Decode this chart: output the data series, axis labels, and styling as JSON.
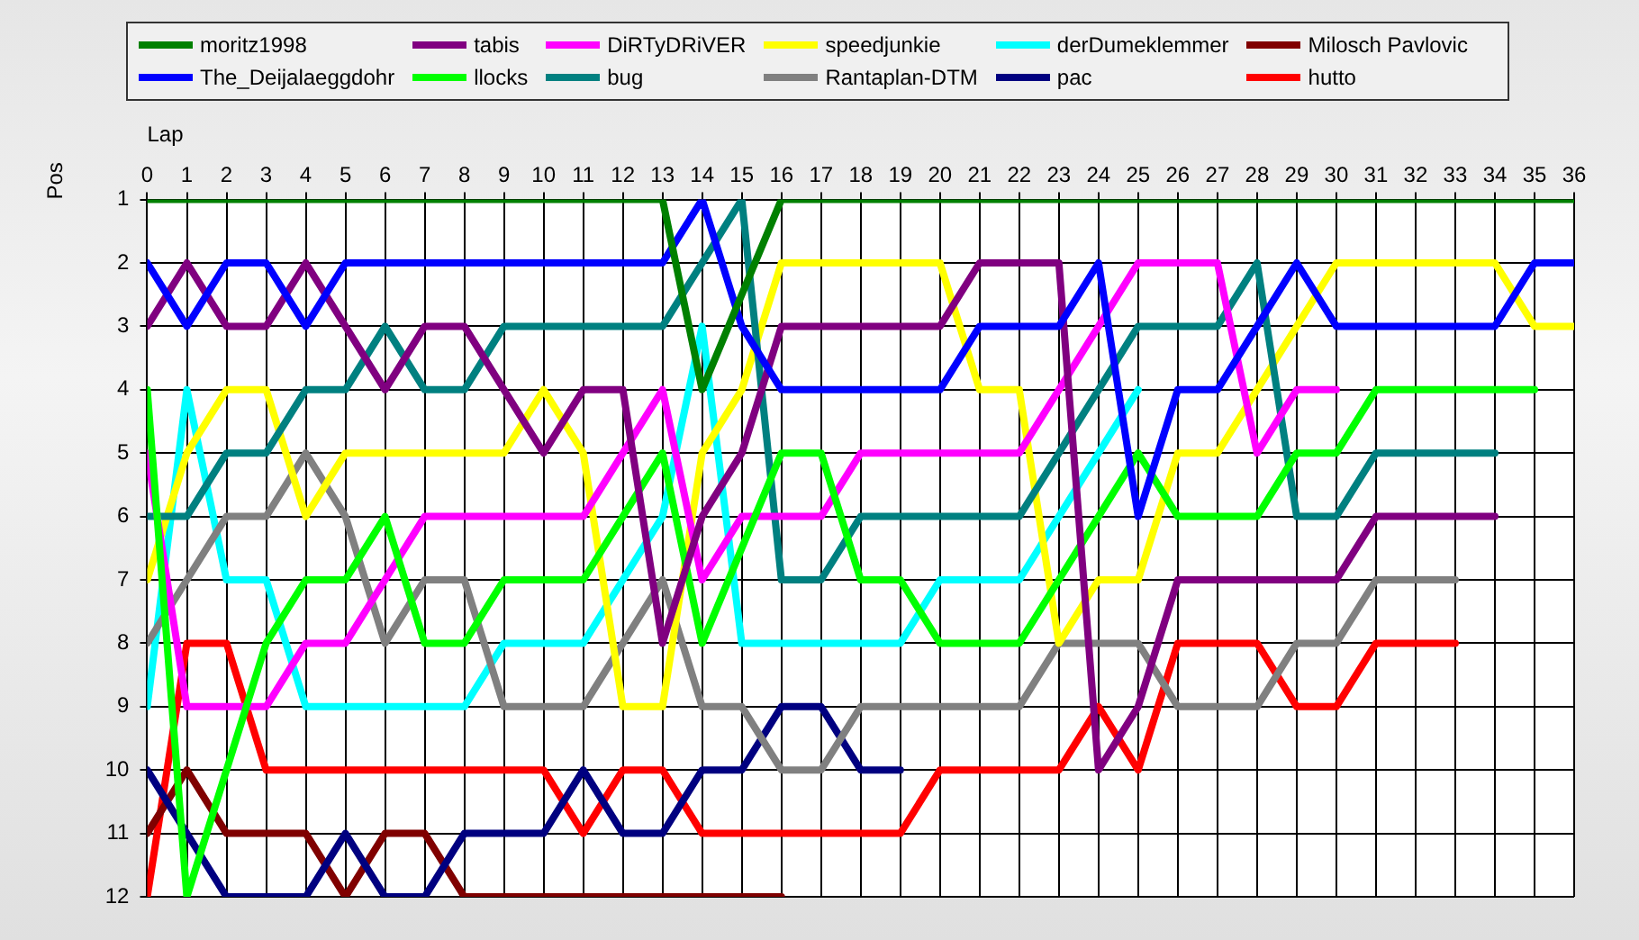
{
  "chart_data": {
    "type": "line",
    "xlabel": "Lap",
    "ylabel": "Pos",
    "x": [
      0,
      1,
      2,
      3,
      4,
      5,
      6,
      7,
      8,
      9,
      10,
      11,
      12,
      13,
      14,
      15,
      16,
      17,
      18,
      19,
      20,
      21,
      22,
      23,
      24,
      25,
      26,
      27,
      28,
      29,
      30,
      31,
      32,
      33,
      34,
      35,
      36
    ],
    "xlim": [
      0,
      36
    ],
    "xticks": [
      0,
      1,
      2,
      3,
      4,
      5,
      6,
      7,
      8,
      9,
      10,
      11,
      12,
      13,
      14,
      15,
      16,
      17,
      18,
      19,
      20,
      21,
      22,
      23,
      24,
      25,
      26,
      27,
      28,
      29,
      30,
      31,
      32,
      33,
      34,
      35,
      36
    ],
    "ylim": [
      12,
      1
    ],
    "yticks": [
      1,
      2,
      3,
      4,
      5,
      6,
      7,
      8,
      9,
      10,
      11,
      12
    ],
    "grid": true,
    "legend": "top",
    "marker": "none",
    "line_style": "solid",
    "series": [
      {
        "name": "moritz1998",
        "color": "#008000",
        "x": [
          0,
          1,
          2,
          3,
          4,
          5,
          6,
          7,
          8,
          9,
          10,
          11,
          12,
          13,
          14,
          16,
          17,
          18,
          19,
          20,
          21,
          22,
          23,
          24,
          25,
          26,
          27,
          28,
          29,
          30,
          31,
          32,
          33,
          34,
          35,
          36
        ],
        "values": [
          1,
          1,
          1,
          1,
          1,
          1,
          1,
          1,
          1,
          1,
          1,
          1,
          1,
          1,
          4,
          1,
          1,
          1,
          1,
          1,
          1,
          1,
          1,
          1,
          1,
          1,
          1,
          1,
          1,
          1,
          1,
          1,
          1,
          1,
          1,
          1
        ]
      },
      {
        "name": "The_Deijalaeggdohr",
        "color": "#0000ff",
        "values": [
          2,
          3,
          2,
          2,
          3,
          2,
          2,
          2,
          2,
          2,
          2,
          2,
          2,
          2,
          1,
          3,
          4,
          4,
          4,
          4,
          4,
          3,
          3,
          3,
          2,
          6,
          4,
          4,
          3,
          2,
          3,
          3,
          3,
          3,
          3,
          2,
          2
        ]
      },
      {
        "name": "tabis",
        "color": "#800080",
        "values": [
          3,
          2,
          3,
          3,
          2,
          3,
          4,
          3,
          3,
          4,
          5,
          4,
          4,
          8,
          6,
          5,
          3,
          3,
          3,
          3,
          3,
          2,
          2,
          2,
          10,
          9,
          7,
          7,
          7,
          7,
          7,
          6,
          6,
          6,
          6,
          null,
          null
        ]
      },
      {
        "name": "llocks",
        "color": "#00ff00",
        "x": [
          0,
          1,
          2,
          3,
          4,
          5,
          6,
          7,
          8,
          9,
          10,
          11,
          12,
          13,
          14,
          16,
          17,
          18,
          19,
          20,
          21,
          22,
          23,
          24,
          25,
          26,
          27,
          28,
          29,
          30,
          31,
          32,
          33,
          34,
          35
        ],
        "values": [
          4,
          12,
          10,
          8,
          7,
          7,
          6,
          8,
          8,
          7,
          7,
          7,
          6,
          5,
          8,
          5,
          5,
          7,
          7,
          8,
          8,
          8,
          7,
          6,
          5,
          6,
          6,
          6,
          5,
          5,
          4,
          4,
          4,
          4,
          4
        ]
      },
      {
        "name": "DiRTyDRiVER",
        "color": "#ff00ff",
        "values": [
          5,
          9,
          9,
          9,
          8,
          8,
          7,
          6,
          6,
          6,
          6,
          6,
          5,
          4,
          7,
          6,
          6,
          6,
          5,
          5,
          5,
          5,
          5,
          4,
          3,
          2,
          2,
          2,
          5,
          4,
          4,
          null,
          null,
          null,
          null,
          null,
          null
        ]
      },
      {
        "name": "bug",
        "color": "#008080",
        "values": [
          6,
          6,
          5,
          5,
          4,
          4,
          3,
          4,
          4,
          3,
          3,
          3,
          3,
          3,
          2,
          1,
          7,
          7,
          6,
          6,
          6,
          6,
          6,
          5,
          4,
          3,
          3,
          3,
          2,
          6,
          6,
          5,
          5,
          5,
          5,
          null,
          null
        ]
      },
      {
        "name": "speedjunkie",
        "color": "#ffff00",
        "values": [
          7,
          5,
          4,
          4,
          6,
          5,
          5,
          5,
          5,
          5,
          4,
          5,
          9,
          9,
          5,
          4,
          2,
          2,
          2,
          2,
          2,
          4,
          4,
          8,
          7,
          7,
          5,
          5,
          4,
          3,
          2,
          2,
          2,
          2,
          2,
          3,
          3
        ]
      },
      {
        "name": "Rantaplan-DTM",
        "color": "#808080",
        "values": [
          8,
          7,
          6,
          6,
          5,
          6,
          8,
          7,
          7,
          9,
          9,
          9,
          8,
          7,
          9,
          9,
          10,
          10,
          9,
          9,
          9,
          9,
          9,
          8,
          8,
          8,
          9,
          9,
          9,
          8,
          8,
          7,
          7,
          7,
          null,
          null,
          null
        ]
      },
      {
        "name": "derDumeklemmer",
        "color": "#00ffff",
        "values": [
          9,
          4,
          7,
          7,
          9,
          9,
          9,
          9,
          9,
          8,
          8,
          8,
          7,
          6,
          3,
          8,
          8,
          8,
          8,
          8,
          7,
          7,
          7,
          6,
          5,
          4,
          null,
          null,
          null,
          null,
          null,
          null,
          null,
          null,
          null,
          null,
          null
        ]
      },
      {
        "name": "pac",
        "color": "#000080",
        "values": [
          10,
          11,
          12,
          12,
          12,
          11,
          12,
          12,
          11,
          11,
          11,
          10,
          11,
          11,
          10,
          10,
          9,
          9,
          10,
          10,
          null,
          null,
          null,
          null,
          null,
          null,
          null,
          null,
          null,
          null,
          null,
          null,
          null,
          null,
          null,
          null,
          null
        ]
      },
      {
        "name": "Milosch Pavlovic",
        "color": "#800000",
        "values": [
          11,
          10,
          11,
          11,
          11,
          12,
          11,
          11,
          12,
          12,
          12,
          12,
          12,
          12,
          12,
          12,
          12,
          null,
          null,
          null,
          null,
          null,
          null,
          null,
          null,
          null,
          null,
          null,
          null,
          null,
          null,
          null,
          null,
          null,
          null,
          null,
          null
        ]
      },
      {
        "name": "hutto",
        "color": "#ff0000",
        "values": [
          12,
          8,
          8,
          10,
          10,
          10,
          10,
          10,
          10,
          10,
          10,
          11,
          10,
          10,
          11,
          11,
          11,
          11,
          11,
          11,
          10,
          10,
          10,
          10,
          9,
          10,
          8,
          8,
          8,
          9,
          9,
          8,
          8,
          8,
          null,
          null,
          null
        ]
      }
    ]
  }
}
